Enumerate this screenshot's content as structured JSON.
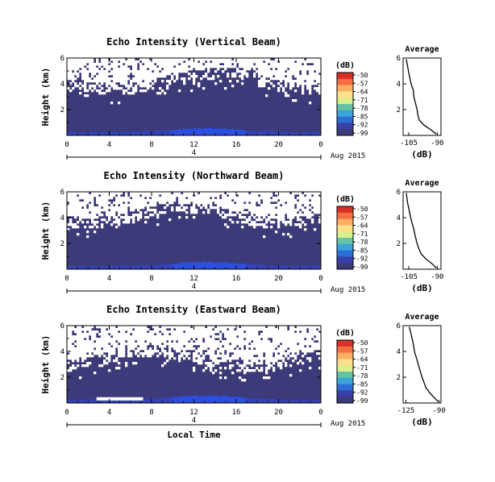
{
  "chart_data": [
    {
      "type": "heatmap",
      "title": "Echo Intensity (Vertical Beam)",
      "ylabel": "Height (km)",
      "x_ticks": [
        "0",
        "4",
        "8",
        "12",
        "16",
        "20",
        "0"
      ],
      "y_ticks": [
        "2",
        "4",
        "6"
      ],
      "xlim": [
        0,
        24
      ],
      "ylim": [
        0,
        6
      ],
      "date_axis": {
        "day": "4",
        "month_label": "Aug 2015"
      },
      "colorbar": {
        "unit": "(dB)",
        "ticks": [
          "-50",
          "-57",
          "-64",
          "-71",
          "-78",
          "-85",
          "-92",
          "-99"
        ]
      },
      "average": {
        "title": "Average",
        "xlabel": "(dB)",
        "x_ticks": [
          "-105",
          "-90"
        ],
        "y_ticks": [
          "2",
          "4",
          "6"
        ],
        "xlim": [
          -108,
          -88
        ],
        "profile": [
          [
            -90.5,
            0.1
          ],
          [
            -93,
            0.4
          ],
          [
            -97,
            0.8
          ],
          [
            -99.5,
            1.2
          ],
          [
            -100.2,
            1.6
          ],
          [
            -100.6,
            2.0
          ],
          [
            -101.5,
            2.5
          ],
          [
            -102.3,
            3.0
          ],
          [
            -102.6,
            3.5
          ],
          [
            -103.8,
            4.0
          ],
          [
            -104.5,
            4.5
          ],
          [
            -105.2,
            5.0
          ],
          [
            -105.8,
            5.5
          ],
          [
            -106.3,
            5.9
          ]
        ]
      }
    },
    {
      "type": "heatmap",
      "title": "Echo Intensity (Northward Beam)",
      "ylabel": "Height (km)",
      "x_ticks": [
        "0",
        "4",
        "8",
        "12",
        "16",
        "20",
        "0"
      ],
      "y_ticks": [
        "2",
        "4",
        "6"
      ],
      "xlim": [
        0,
        24
      ],
      "ylim": [
        0,
        6
      ],
      "date_axis": {
        "day": "4",
        "month_label": "Aug 2015"
      },
      "colorbar": {
        "unit": "(dB)",
        "ticks": [
          "-50",
          "-57",
          "-64",
          "-71",
          "-78",
          "-85",
          "-92",
          "-99"
        ]
      },
      "average": {
        "title": "Average",
        "xlabel": "(dB)",
        "x_ticks": [
          "-105",
          "-90"
        ],
        "y_ticks": [
          "2",
          "4",
          "6"
        ],
        "xlim": [
          -108,
          -88
        ],
        "profile": [
          [
            -90.5,
            0.1
          ],
          [
            -92.5,
            0.4
          ],
          [
            -96,
            0.8
          ],
          [
            -98.5,
            1.2
          ],
          [
            -100,
            1.7
          ],
          [
            -101,
            2.2
          ],
          [
            -101.8,
            2.7
          ],
          [
            -102.5,
            3.2
          ],
          [
            -103.5,
            3.7
          ],
          [
            -104.3,
            4.2
          ],
          [
            -105,
            4.7
          ],
          [
            -105.7,
            5.2
          ],
          [
            -106.3,
            5.9
          ]
        ]
      }
    },
    {
      "type": "heatmap",
      "title": "Echo Intensity (Eastward Beam)",
      "ylabel": "Height (km)",
      "xlabel": "Local Time",
      "x_ticks": [
        "0",
        "4",
        "8",
        "12",
        "16",
        "20",
        "0"
      ],
      "y_ticks": [
        "2",
        "4",
        "6"
      ],
      "xlim": [
        0,
        24
      ],
      "ylim": [
        0,
        6
      ],
      "date_axis": {
        "day": "4",
        "month_label": "Aug 2015"
      },
      "colorbar": {
        "unit": "(dB)",
        "ticks": [
          "-50",
          "-57",
          "-64",
          "-71",
          "-78",
          "-85",
          "-92",
          "-99"
        ]
      },
      "average": {
        "title": "Average",
        "xlabel": "(dB)",
        "x_ticks": [
          "-125",
          "-90"
        ],
        "y_ticks": [
          "2",
          "4",
          "6"
        ],
        "xlim": [
          -128,
          -88
        ],
        "profile": [
          [
            -91,
            0.1
          ],
          [
            -95,
            0.4
          ],
          [
            -100,
            0.8
          ],
          [
            -104,
            1.2
          ],
          [
            -106,
            1.6
          ],
          [
            -108,
            2.0
          ],
          [
            -110,
            2.5
          ],
          [
            -112,
            3.0
          ],
          [
            -114,
            3.5
          ],
          [
            -116,
            4.0
          ],
          [
            -117,
            4.5
          ],
          [
            -118.5,
            5.0
          ],
          [
            -120,
            5.5
          ],
          [
            -121.5,
            5.9
          ]
        ]
      }
    }
  ]
}
